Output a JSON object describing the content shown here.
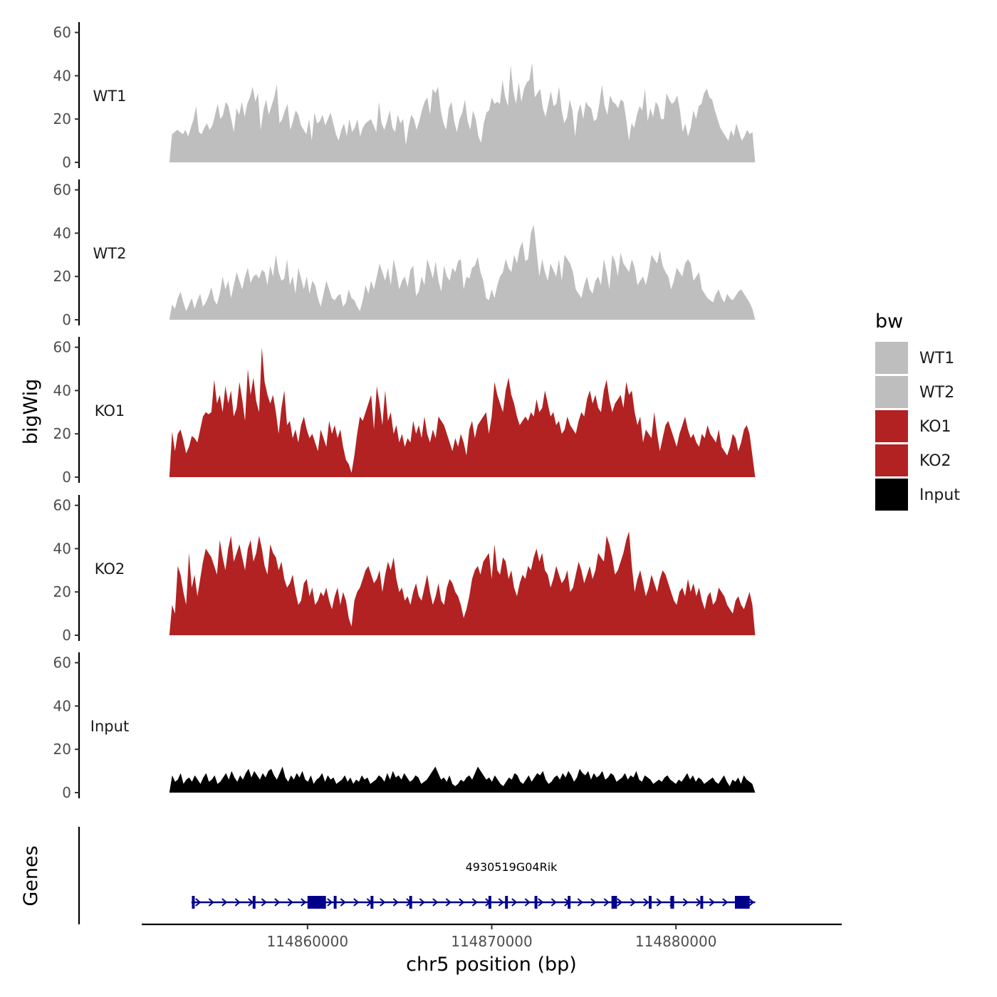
{
  "chart_data": {
    "type": "area",
    "title": "",
    "ylabel": "bigWig",
    "xlabel": "chr5 position (bp)",
    "genes_label": "Genes",
    "ylim": [
      0,
      60
    ],
    "yticks": [
      0,
      20,
      40,
      60
    ],
    "xlim": [
      114851000,
      114889000
    ],
    "data_range": [
      114852500,
      114884300
    ],
    "xticks": [
      114860000,
      114870000,
      114880000
    ],
    "legend": {
      "title": "bw",
      "position": "right",
      "entries": [
        {
          "name": "WT1",
          "color": "#bebebe"
        },
        {
          "name": "WT2",
          "color": "#bebebe"
        },
        {
          "name": "KO1",
          "color": "#b22222"
        },
        {
          "name": "KO2",
          "color": "#b22222"
        },
        {
          "name": "Input",
          "color": "#000000"
        }
      ]
    },
    "series": [
      {
        "name": "WT1",
        "color": "#bebebe",
        "values": [
          0,
          13,
          14,
          15,
          14,
          13,
          15,
          12,
          16,
          20,
          26,
          14,
          13,
          16,
          18,
          15,
          17,
          22,
          27,
          20,
          22,
          28,
          26,
          20,
          14,
          25,
          22,
          28,
          21,
          27,
          30,
          35,
          28,
          32,
          15,
          24,
          29,
          22,
          26,
          30,
          36,
          18,
          20,
          24,
          27,
          15,
          19,
          24,
          22,
          17,
          15,
          13,
          20,
          10,
          23,
          18,
          19,
          22,
          17,
          20,
          23,
          18,
          13,
          10,
          15,
          18,
          12,
          20,
          14,
          16,
          20,
          12,
          16,
          18,
          19,
          20,
          17,
          14,
          28,
          18,
          15,
          19,
          24,
          16,
          14,
          22,
          18,
          20,
          8,
          16,
          22,
          20,
          15,
          19,
          24,
          28,
          30,
          22,
          34,
          32,
          35,
          24,
          18,
          15,
          25,
          28,
          19,
          14,
          20,
          23,
          29,
          19,
          15,
          24,
          20,
          12,
          9,
          18,
          23,
          24,
          30,
          27,
          28,
          27,
          38,
          30,
          26,
          45,
          33,
          27,
          37,
          28,
          34,
          37,
          38,
          46,
          30,
          32,
          34,
          25,
          21,
          27,
          33,
          26,
          27,
          35,
          24,
          18,
          21,
          29,
          24,
          12,
          23,
          27,
          20,
          28,
          26,
          25,
          19,
          20,
          27,
          36,
          26,
          22,
          31,
          28,
          27,
          25,
          29,
          28,
          20,
          10,
          18,
          16,
          22,
          26,
          24,
          34,
          19,
          25,
          21,
          28,
          26,
          20,
          20,
          32,
          29,
          27,
          28,
          31,
          24,
          14,
          18,
          12,
          16,
          24,
          20,
          26,
          27,
          32,
          34,
          30,
          29,
          24,
          20,
          16,
          14,
          12,
          10,
          15,
          12,
          18,
          14,
          10,
          12,
          15,
          13,
          14,
          0
        ]
      },
      {
        "name": "WT2",
        "color": "#bebebe",
        "values": [
          0,
          7,
          5,
          10,
          13,
          8,
          4,
          7,
          10,
          5,
          9,
          12,
          6,
          8,
          11,
          15,
          9,
          7,
          12,
          20,
          14,
          18,
          10,
          16,
          22,
          18,
          14,
          20,
          24,
          17,
          20,
          21,
          19,
          23,
          22,
          16,
          25,
          20,
          30,
          22,
          18,
          19,
          28,
          16,
          20,
          12,
          24,
          19,
          14,
          20,
          12,
          18,
          16,
          10,
          6,
          12,
          18,
          14,
          10,
          9,
          11,
          12,
          6,
          8,
          14,
          10,
          9,
          6,
          4,
          9,
          16,
          12,
          18,
          14,
          20,
          26,
          22,
          18,
          24,
          16,
          28,
          22,
          14,
          18,
          20,
          15,
          23,
          25,
          11,
          13,
          20,
          16,
          28,
          24,
          19,
          27,
          18,
          13,
          25,
          20,
          18,
          24,
          22,
          27,
          28,
          14,
          20,
          19,
          24,
          25,
          29,
          22,
          18,
          10,
          9,
          14,
          10,
          16,
          20,
          22,
          28,
          24,
          22,
          30,
          26,
          33,
          36,
          27,
          28,
          40,
          44,
          32,
          20,
          28,
          22,
          18,
          26,
          23,
          20,
          28,
          18,
          30,
          28,
          26,
          22,
          14,
          12,
          10,
          16,
          20,
          14,
          12,
          18,
          20,
          16,
          28,
          22,
          14,
          30,
          27,
          20,
          31,
          26,
          24,
          22,
          28,
          24,
          16,
          18,
          20,
          16,
          22,
          30,
          28,
          26,
          32,
          25,
          22,
          20,
          14,
          18,
          24,
          22,
          20,
          26,
          28,
          26,
          18,
          20,
          22,
          14,
          12,
          10,
          9,
          8,
          12,
          14,
          10,
          8,
          12,
          10,
          9,
          11,
          13,
          14,
          12,
          10,
          8,
          5,
          0
        ]
      },
      {
        "name": "KO1",
        "color": "#b22222",
        "values": [
          0,
          21,
          12,
          20,
          22,
          17,
          11,
          14,
          19,
          18,
          16,
          22,
          28,
          30,
          29,
          30,
          45,
          34,
          38,
          30,
          42,
          34,
          40,
          28,
          32,
          44,
          36,
          26,
          50,
          38,
          46,
          35,
          30,
          60,
          44,
          38,
          34,
          38,
          30,
          20,
          32,
          40,
          24,
          26,
          18,
          22,
          16,
          24,
          28,
          22,
          18,
          20,
          16,
          12,
          22,
          18,
          14,
          26,
          20,
          24,
          18,
          22,
          14,
          8,
          6,
          2,
          10,
          20,
          28,
          26,
          30,
          34,
          38,
          22,
          42,
          34,
          24,
          40,
          26,
          30,
          20,
          24,
          16,
          20,
          14,
          18,
          16,
          26,
          20,
          24,
          18,
          28,
          20,
          16,
          22,
          18,
          28,
          26,
          24,
          20,
          16,
          12,
          18,
          14,
          20,
          16,
          10,
          22,
          26,
          18,
          24,
          26,
          28,
          30,
          20,
          28,
          44,
          38,
          34,
          30,
          40,
          46,
          38,
          34,
          28,
          24,
          26,
          28,
          26,
          30,
          28,
          36,
          30,
          32,
          40,
          34,
          28,
          30,
          24,
          26,
          20,
          22,
          28,
          24,
          22,
          20,
          26,
          30,
          28,
          36,
          40,
          34,
          38,
          32,
          30,
          40,
          45,
          36,
          30,
          34,
          36,
          38,
          32,
          44,
          38,
          40,
          30,
          24,
          28,
          16,
          22,
          20,
          18,
          30,
          20,
          12,
          18,
          24,
          26,
          22,
          18,
          14,
          20,
          24,
          28,
          22,
          18,
          20,
          16,
          14,
          20,
          18,
          24,
          20,
          18,
          16,
          22,
          14,
          12,
          10,
          14,
          20,
          18,
          12,
          16,
          22,
          24,
          20,
          10,
          0
        ]
      },
      {
        "name": "KO2",
        "color": "#b22222",
        "values": [
          0,
          14,
          10,
          32,
          28,
          20,
          14,
          38,
          22,
          28,
          18,
          26,
          34,
          40,
          38,
          36,
          32,
          28,
          44,
          36,
          30,
          40,
          46,
          34,
          38,
          42,
          36,
          30,
          40,
          44,
          34,
          38,
          46,
          40,
          32,
          28,
          42,
          38,
          36,
          30,
          34,
          26,
          22,
          24,
          28,
          20,
          14,
          16,
          24,
          26,
          18,
          22,
          14,
          16,
          20,
          18,
          22,
          16,
          12,
          18,
          22,
          14,
          20,
          16,
          8,
          4,
          16,
          20,
          22,
          26,
          30,
          32,
          28,
          24,
          26,
          30,
          20,
          28,
          34,
          30,
          36,
          26,
          20,
          22,
          16,
          18,
          14,
          20,
          24,
          18,
          16,
          22,
          28,
          20,
          14,
          18,
          24,
          16,
          14,
          22,
          26,
          24,
          20,
          18,
          14,
          8,
          12,
          18,
          26,
          30,
          32,
          28,
          34,
          36,
          38,
          26,
          42,
          30,
          28,
          36,
          34,
          26,
          30,
          22,
          18,
          24,
          28,
          26,
          32,
          30,
          36,
          40,
          34,
          38,
          30,
          28,
          22,
          26,
          32,
          28,
          24,
          26,
          30,
          20,
          22,
          28,
          34,
          30,
          24,
          28,
          32,
          26,
          30,
          38,
          36,
          34,
          46,
          42,
          36,
          28,
          30,
          34,
          38,
          44,
          48,
          32,
          20,
          26,
          30,
          24,
          18,
          22,
          28,
          24,
          20,
          26,
          30,
          28,
          24,
          20,
          16,
          14,
          20,
          22,
          18,
          26,
          20,
          24,
          18,
          22,
          16,
          12,
          18,
          20,
          14,
          16,
          22,
          20,
          18,
          14,
          12,
          10,
          16,
          18,
          14,
          12,
          16,
          20,
          14,
          0
        ]
      },
      {
        "name": "Input",
        "color": "#000000",
        "values": [
          0,
          8,
          5,
          6,
          9,
          4,
          6,
          7,
          5,
          8,
          6,
          4,
          7,
          9,
          5,
          6,
          8,
          4,
          5,
          7,
          9,
          6,
          10,
          7,
          5,
          8,
          6,
          9,
          11,
          7,
          10,
          8,
          6,
          9,
          7,
          10,
          11,
          8,
          6,
          9,
          12,
          7,
          5,
          8,
          6,
          9,
          7,
          10,
          6,
          5,
          8,
          4,
          6,
          7,
          9,
          5,
          8,
          6,
          7,
          4,
          5,
          6,
          8,
          5,
          7,
          4,
          6,
          5,
          8,
          6,
          7,
          4,
          5,
          6,
          8,
          7,
          5,
          9,
          6,
          10,
          7,
          8,
          6,
          9,
          7,
          5,
          6,
          8,
          7,
          4,
          5,
          6,
          8,
          10,
          12,
          9,
          6,
          7,
          5,
          8,
          4,
          3,
          4,
          6,
          5,
          7,
          8,
          6,
          9,
          12,
          10,
          8,
          6,
          7,
          5,
          8,
          6,
          4,
          3,
          5,
          7,
          6,
          9,
          8,
          5,
          4,
          6,
          8,
          5,
          7,
          9,
          8,
          10,
          6,
          4,
          5,
          7,
          8,
          6,
          9,
          7,
          10,
          8,
          5,
          7,
          11,
          9,
          8,
          10,
          6,
          9,
          7,
          8,
          10,
          6,
          7,
          9,
          8,
          5,
          6,
          7,
          9,
          6,
          8,
          7,
          10,
          6,
          5,
          8,
          7,
          6,
          4,
          5,
          6,
          5,
          7,
          8,
          6,
          5,
          4,
          6,
          5,
          7,
          9,
          6,
          8,
          5,
          7,
          6,
          4,
          5,
          6,
          7,
          5,
          4,
          6,
          8,
          5,
          3,
          6,
          5,
          7,
          4,
          8,
          6,
          5,
          4,
          0
        ]
      }
    ],
    "gene": {
      "name": "4930519G04Rik",
      "strand": "+",
      "color": "#00008b",
      "start": 114853700,
      "end": 114884300,
      "exon_marks": [
        114853800,
        114857100,
        114861500,
        114863500,
        114865600,
        114869900,
        114870800,
        114872400,
        114874200,
        114878600,
        114881400
      ],
      "exon_blocks": [
        {
          "start": 114860000,
          "end": 114861000
        },
        {
          "start": 114876500,
          "end": 114876800
        },
        {
          "start": 114879700,
          "end": 114879900
        },
        {
          "start": 114883200,
          "end": 114884000
        }
      ]
    }
  }
}
